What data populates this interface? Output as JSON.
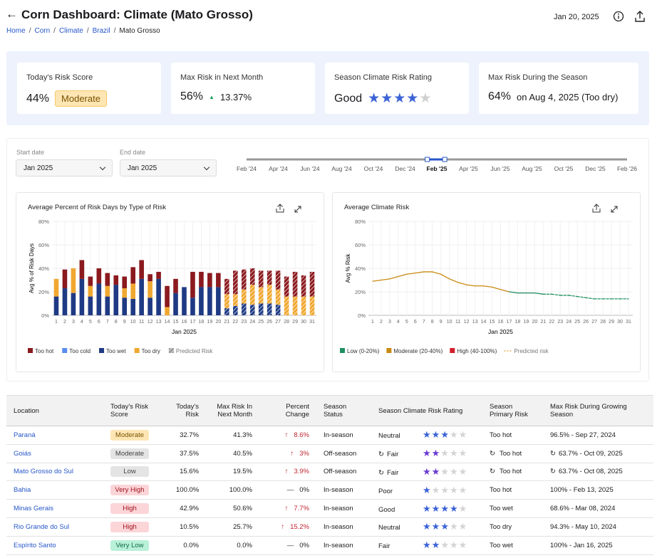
{
  "header": {
    "title": "Corn Dashboard: Climate (Mato Grosso)",
    "breadcrumbs": [
      "Home",
      "Corn",
      "Climate",
      "Brazil",
      "Mato Grosso"
    ],
    "date": "Jan 20, 2025"
  },
  "kpis": [
    {
      "label": "Today's Risk Score",
      "value": "44%",
      "badge": "Moderate"
    },
    {
      "label": "Max Risk in Next Month",
      "value": "56%",
      "change_icon": "▲",
      "change": "13.37%"
    },
    {
      "label": "Season Climate Risk Rating",
      "value": "Good",
      "stars": 4,
      "stars_total": 5
    },
    {
      "label": "Max Risk During the Season",
      "value": "64%",
      "detail": "on Aug 4, 2025 (Too dry)"
    }
  ],
  "filters": {
    "start_label": "Start date",
    "start_value": "Jan 2025",
    "end_label": "End date",
    "end_value": "Jan 2025",
    "timeline": [
      "Feb '24",
      "Apr '24",
      "Jun '24",
      "Aug '24",
      "Oct '24",
      "Dec '24",
      "Feb '25",
      "Apr '25",
      "Jun '25",
      "Aug '25",
      "Oct '25",
      "Dec '25",
      "Feb '26"
    ]
  },
  "chart_data": [
    {
      "type": "bar",
      "title": "Average Percent of Risk Days by Type of Risk",
      "x_label": "Jan 2025",
      "y_label": "Avg % of Risk Days",
      "categories": [
        "1",
        "2",
        "3",
        "4",
        "5",
        "6",
        "7",
        "8",
        "9",
        "10",
        "11",
        "12",
        "13",
        "14",
        "15",
        "16",
        "17",
        "18",
        "19",
        "20",
        "21",
        "22",
        "23",
        "24",
        "25",
        "26",
        "27",
        "28",
        "29",
        "30",
        "31"
      ],
      "series": [
        {
          "name": "Too hot",
          "color": "#8b1a1f",
          "values": [
            0,
            16,
            0,
            16,
            8,
            13,
            11,
            8,
            10,
            14,
            16,
            6,
            6,
            18,
            12,
            0,
            22,
            13,
            12,
            12,
            13,
            20,
            17,
            14,
            14,
            12,
            16,
            17,
            21,
            18,
            21
          ]
        },
        {
          "name": "Too cold",
          "color": "#5b8def",
          "values": [
            0,
            0,
            0,
            0,
            0,
            0,
            0,
            0,
            0,
            0,
            0,
            0,
            0,
            0,
            0,
            0,
            0,
            0,
            0,
            0,
            0,
            0,
            0,
            0,
            0,
            0,
            0,
            0,
            0,
            0,
            0
          ]
        },
        {
          "name": "Too wet",
          "color": "#1f3a84",
          "values": [
            16,
            23,
            19,
            31,
            16,
            27,
            16,
            26,
            15,
            14,
            31,
            15,
            31,
            0,
            19,
            24,
            15,
            24,
            24,
            24,
            6,
            8,
            10,
            9,
            10,
            10,
            9,
            0,
            0,
            0,
            0
          ]
        },
        {
          "name": "Too dry",
          "color": "#f0a830",
          "values": [
            15,
            0,
            21,
            0,
            9,
            0,
            9,
            0,
            8,
            13,
            0,
            14,
            0,
            7,
            0,
            0,
            0,
            0,
            0,
            0,
            12,
            10,
            12,
            17,
            14,
            16,
            13,
            16,
            16,
            16,
            16
          ]
        }
      ],
      "predicted_label": "Predicted Risk",
      "predicted_color": "#9a9a9a",
      "predicted": [
        false,
        false,
        false,
        false,
        false,
        false,
        false,
        false,
        false,
        false,
        false,
        false,
        false,
        false,
        false,
        false,
        false,
        false,
        false,
        false,
        true,
        true,
        true,
        true,
        true,
        true,
        true,
        true,
        true,
        true,
        true
      ],
      "ylim": [
        0,
        80
      ],
      "yticks": [
        {
          "value": 0,
          "label": "0%"
        },
        {
          "value": 20,
          "label": "20%"
        },
        {
          "value": 40,
          "label": "40%"
        },
        {
          "value": 60,
          "label": "60%"
        },
        {
          "value": 80,
          "label": "80%"
        }
      ],
      "grid": true
    },
    {
      "type": "line",
      "title": "Average Climate Risk",
      "x_label": "Jan 2025",
      "y_label": "Avg % Risk",
      "categories": [
        "1",
        "2",
        "3",
        "4",
        "5",
        "6",
        "7",
        "8",
        "9",
        "10",
        "11",
        "12",
        "13",
        "14",
        "15",
        "16",
        "17",
        "18",
        "19",
        "20",
        "21",
        "22",
        "23",
        "24",
        "25",
        "26",
        "27",
        "28",
        "29",
        "30",
        "31"
      ],
      "values": [
        29,
        30,
        31,
        33,
        35,
        36,
        37,
        37,
        35,
        31,
        28,
        26,
        25,
        25,
        24,
        22,
        20,
        19,
        19,
        19,
        18,
        18,
        17,
        17,
        16,
        15,
        14,
        14,
        14,
        14,
        14
      ],
      "levels": [
        {
          "name": "Low (0-20%)",
          "color": "#1f8f5f",
          "min": 0,
          "max": 20
        },
        {
          "name": "Moderate (20-40%)",
          "color": "#c98a12",
          "min": 20,
          "max": 40
        },
        {
          "name": "High (40-100%)",
          "color": "#d11f2a",
          "min": 40,
          "max": 100
        }
      ],
      "predicted_label": "Predicted risk",
      "predicted_color": "#e3a33b",
      "predicted": [
        false,
        false,
        false,
        false,
        false,
        false,
        false,
        false,
        false,
        false,
        false,
        false,
        false,
        false,
        false,
        false,
        false,
        false,
        false,
        false,
        false,
        true,
        true,
        true,
        true,
        true,
        true,
        true,
        true,
        true,
        true
      ],
      "ylim": [
        0,
        80
      ],
      "yticks": [
        {
          "value": 0,
          "label": "0%"
        },
        {
          "value": 20,
          "label": "20%"
        },
        {
          "value": 40,
          "label": "40%"
        },
        {
          "value": 60,
          "label": "60%"
        },
        {
          "value": 80,
          "label": "80%"
        }
      ],
      "grid": true
    }
  ],
  "table": {
    "headers": [
      "Location",
      "Today's Risk Score",
      "Today's Risk",
      "Max Risk In Next Month",
      "Percent Change",
      "Season Status",
      "Season Climate Risk Rating",
      "Season Primary Risk",
      "Max Risk During Growing Season"
    ],
    "stars_total": 5,
    "rows": [
      {
        "location": "Paraná",
        "score": "Moderate",
        "badge_bg": "#fde6b3",
        "badge_fg": "#7a5200",
        "risk": "32.7%",
        "max_next": "41.3%",
        "change_icon": "↑",
        "change": "8.6%",
        "status": "In-season",
        "rating": "Neutral",
        "stars": 3,
        "primary": "Too hot",
        "max_season": "96.5% - Sep 27, 2024"
      },
      {
        "location": "Goiás",
        "score": "Moderate",
        "badge_bg": "#e4e4e4",
        "badge_fg": "#444444",
        "risk": "37.5%",
        "max_next": "40.5%",
        "change_icon": "↑",
        "change": "3%",
        "status": "Off-season",
        "rating": "Fair",
        "stars": 2,
        "primary": "Too hot",
        "max_season": "63.7% - Oct 09, 2025"
      },
      {
        "location": "Mato Grosso do Sul",
        "score": "Low",
        "badge_bg": "#e4e4e4",
        "badge_fg": "#444444",
        "risk": "15.6%",
        "max_next": "19.5%",
        "change_icon": "↑",
        "change": "3.9%",
        "status": "Off-season",
        "rating": "Fair",
        "stars": 2,
        "primary": "Too hot",
        "max_season": "63.7% - Oct 08, 2025"
      },
      {
        "location": "Bahia",
        "score": "Very High",
        "badge_bg": "#fbd5d8",
        "badge_fg": "#a3121f",
        "risk": "100.0%",
        "max_next": "100.0%",
        "change_icon": "—",
        "change": "0%",
        "status": "In-season",
        "rating": "Poor",
        "stars": 1,
        "primary": "Too hot",
        "max_season": "100% - Feb 13, 2025"
      },
      {
        "location": "Minas Gerais",
        "score": "High",
        "badge_bg": "#fbd5d8",
        "badge_fg": "#a3121f",
        "risk": "42.9%",
        "max_next": "50.6%",
        "change_icon": "↑",
        "change": "7.7%",
        "status": "In-season",
        "rating": "Good",
        "stars": 4,
        "primary": "Too wet",
        "max_season": "68.6% - Mar 08, 2024"
      },
      {
        "location": "Rio Grande do Sul",
        "score": "High",
        "badge_bg": "#fbd5d8",
        "badge_fg": "#a3121f",
        "risk": "10.5%",
        "max_next": "25.7%",
        "change_icon": "↑",
        "change": "15.2%",
        "status": "In-season",
        "rating": "Neutral",
        "stars": 3,
        "primary": "Too dry",
        "max_season": "94.3% - May 10, 2024"
      },
      {
        "location": "Espírito Santo",
        "score": "Very Low",
        "badge_bg": "#b8f0d8",
        "badge_fg": "#0f6b45",
        "risk": "0.0%",
        "max_next": "0.0%",
        "change_icon": "—",
        "change": "0%",
        "status": "In-season",
        "rating": "Fair",
        "stars": 2,
        "primary": "Too wet",
        "max_season": "100% - Jan 16, 2025"
      }
    ]
  }
}
